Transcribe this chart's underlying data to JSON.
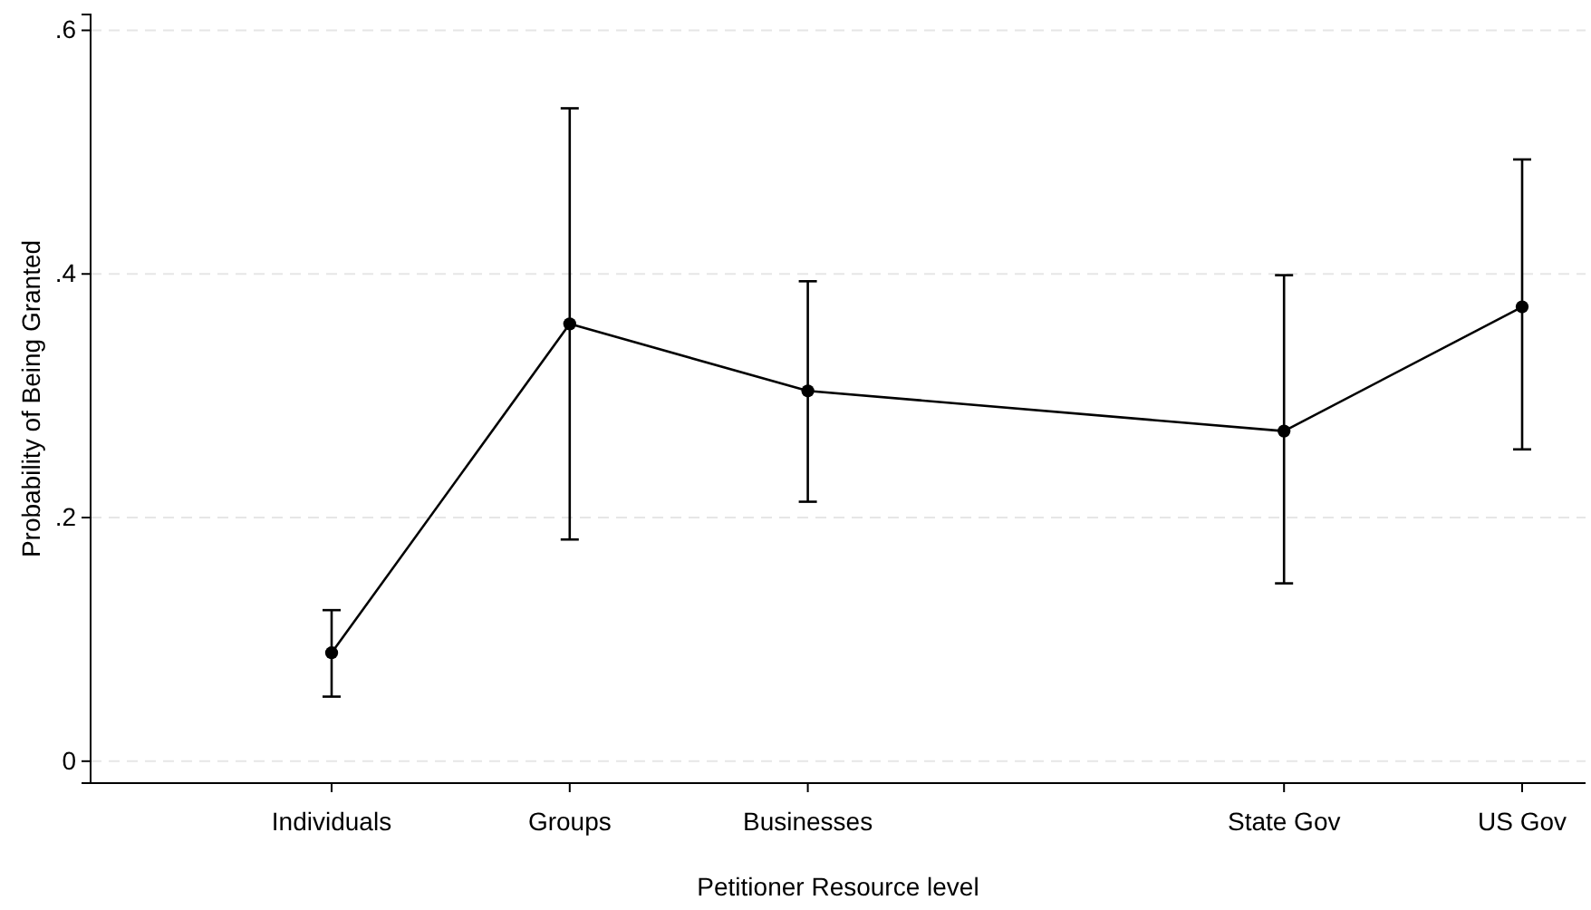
{
  "chart_data": {
    "type": "line",
    "xlabel": "Petitioner Resource level",
    "ylabel": "Probability of Being Granted",
    "categories": [
      "Individuals",
      "Groups",
      "Businesses",
      null,
      "State Gov",
      "US Gov"
    ],
    "values": [
      0.089,
      0.359,
      0.304,
      null,
      0.271,
      0.373
    ],
    "errors": [
      [
        0.053,
        0.124
      ],
      [
        0.182,
        0.536
      ],
      [
        0.213,
        0.394
      ],
      null,
      [
        0.146,
        0.399
      ],
      [
        0.256,
        0.494
      ]
    ],
    "color": "#000000",
    "marker": "circle",
    "line_style": "solid",
    "grid": "y",
    "ylim": [
      -0.018,
      0.613
    ],
    "yticks": [
      {
        "value": 0,
        "label": "0"
      },
      {
        "value": 0.2,
        "label": ".2"
      },
      {
        "value": 0.4,
        "label": ".4"
      },
      {
        "value": 0.6,
        "label": ".6"
      }
    ]
  }
}
